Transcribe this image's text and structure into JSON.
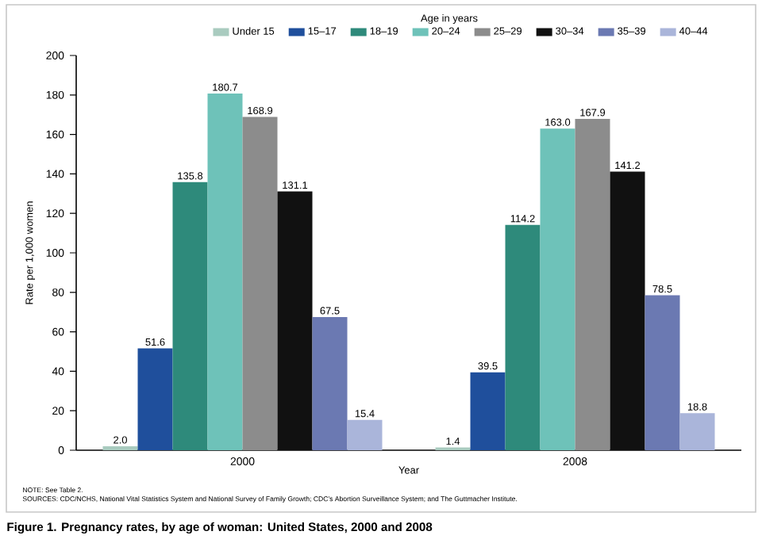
{
  "chart_data": {
    "type": "bar",
    "title": "Figure 1. Pregnancy rates, by age of woman: United States, 2000 and 2008",
    "xlabel": "Year",
    "ylabel": "Rate per 1,000 women",
    "legend_title": "Age in years",
    "legend": "top",
    "categories": [
      "2000",
      "2008"
    ],
    "ylim": [
      0,
      200
    ],
    "yticks": [
      0,
      20,
      40,
      60,
      80,
      100,
      120,
      140,
      160,
      180,
      200
    ],
    "data_labels": true,
    "series": [
      {
        "name": "Under 15",
        "color": "#a9cbbf",
        "values": [
          2.0,
          1.4
        ],
        "value_labels": [
          "2.0",
          "1.4"
        ]
      },
      {
        "name": "15–17",
        "color": "#1f4f9c",
        "values": [
          51.6,
          39.5
        ],
        "value_labels": [
          "51.6",
          "39.5"
        ]
      },
      {
        "name": "18–19",
        "color": "#2e8a7b",
        "values": [
          135.8,
          114.2
        ],
        "value_labels": [
          "135.8",
          "114.2"
        ]
      },
      {
        "name": "20–24",
        "color": "#6ec2b9",
        "values": [
          180.7,
          163.0
        ],
        "value_labels": [
          "180.7",
          "163.0"
        ]
      },
      {
        "name": "25–29",
        "color": "#8c8c8c",
        "values": [
          168.9,
          167.9
        ],
        "value_labels": [
          "168.9",
          "167.9"
        ]
      },
      {
        "name": "30–34",
        "color": "#111111",
        "values": [
          131.1,
          141.2
        ],
        "value_labels": [
          "131.1",
          "141.2"
        ]
      },
      {
        "name": "35–39",
        "color": "#6b79b2",
        "values": [
          67.5,
          78.5
        ],
        "value_labels": [
          "67.5",
          "78.5"
        ]
      },
      {
        "name": "40–44",
        "color": "#aab5da",
        "values": [
          15.4,
          18.8
        ],
        "value_labels": [
          "15.4",
          "18.8"
        ]
      }
    ],
    "annotations": [
      "NOTE: See Table 2.",
      "SOURCES: CDC/NCHS, National Vital Statistics System and National Survey of Family Growth; CDC’s Abortion Surveillance System; and The Guttmacher Institute."
    ]
  }
}
